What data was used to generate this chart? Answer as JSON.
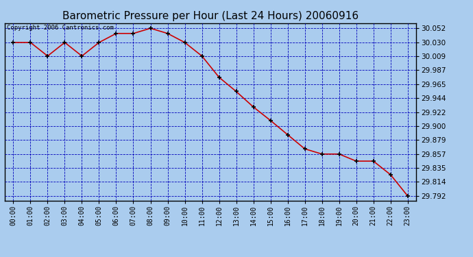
{
  "title": "Barometric Pressure per Hour (Last 24 Hours) 20060916",
  "copyright": "Copyright 2006 Cantronics.com",
  "x_labels": [
    "00:00",
    "01:00",
    "02:00",
    "03:00",
    "04:00",
    "05:00",
    "06:00",
    "07:00",
    "08:00",
    "09:00",
    "10:00",
    "11:00",
    "12:00",
    "13:00",
    "14:00",
    "15:00",
    "16:00",
    "17:00",
    "18:00",
    "19:00",
    "20:00",
    "21:00",
    "22:00",
    "23:00"
  ],
  "y_values": [
    30.03,
    30.03,
    30.009,
    30.03,
    30.009,
    30.03,
    30.044,
    30.044,
    30.052,
    30.044,
    30.03,
    30.009,
    29.976,
    29.954,
    29.93,
    29.909,
    29.887,
    29.865,
    29.857,
    29.857,
    29.846,
    29.846,
    29.825,
    29.792
  ],
  "ylim_min": 29.785,
  "ylim_max": 30.06,
  "yticks": [
    29.792,
    29.814,
    29.835,
    29.857,
    29.879,
    29.9,
    29.922,
    29.944,
    29.965,
    29.987,
    30.009,
    30.03,
    30.052
  ],
  "line_color": "#cc0000",
  "marker_color": "#000000",
  "bg_color": "#aaccee",
  "plot_bg": "#aaccee",
  "grid_color": "#0000bb",
  "border_color": "#000000",
  "title_fontsize": 11,
  "copyright_fontsize": 6.5
}
